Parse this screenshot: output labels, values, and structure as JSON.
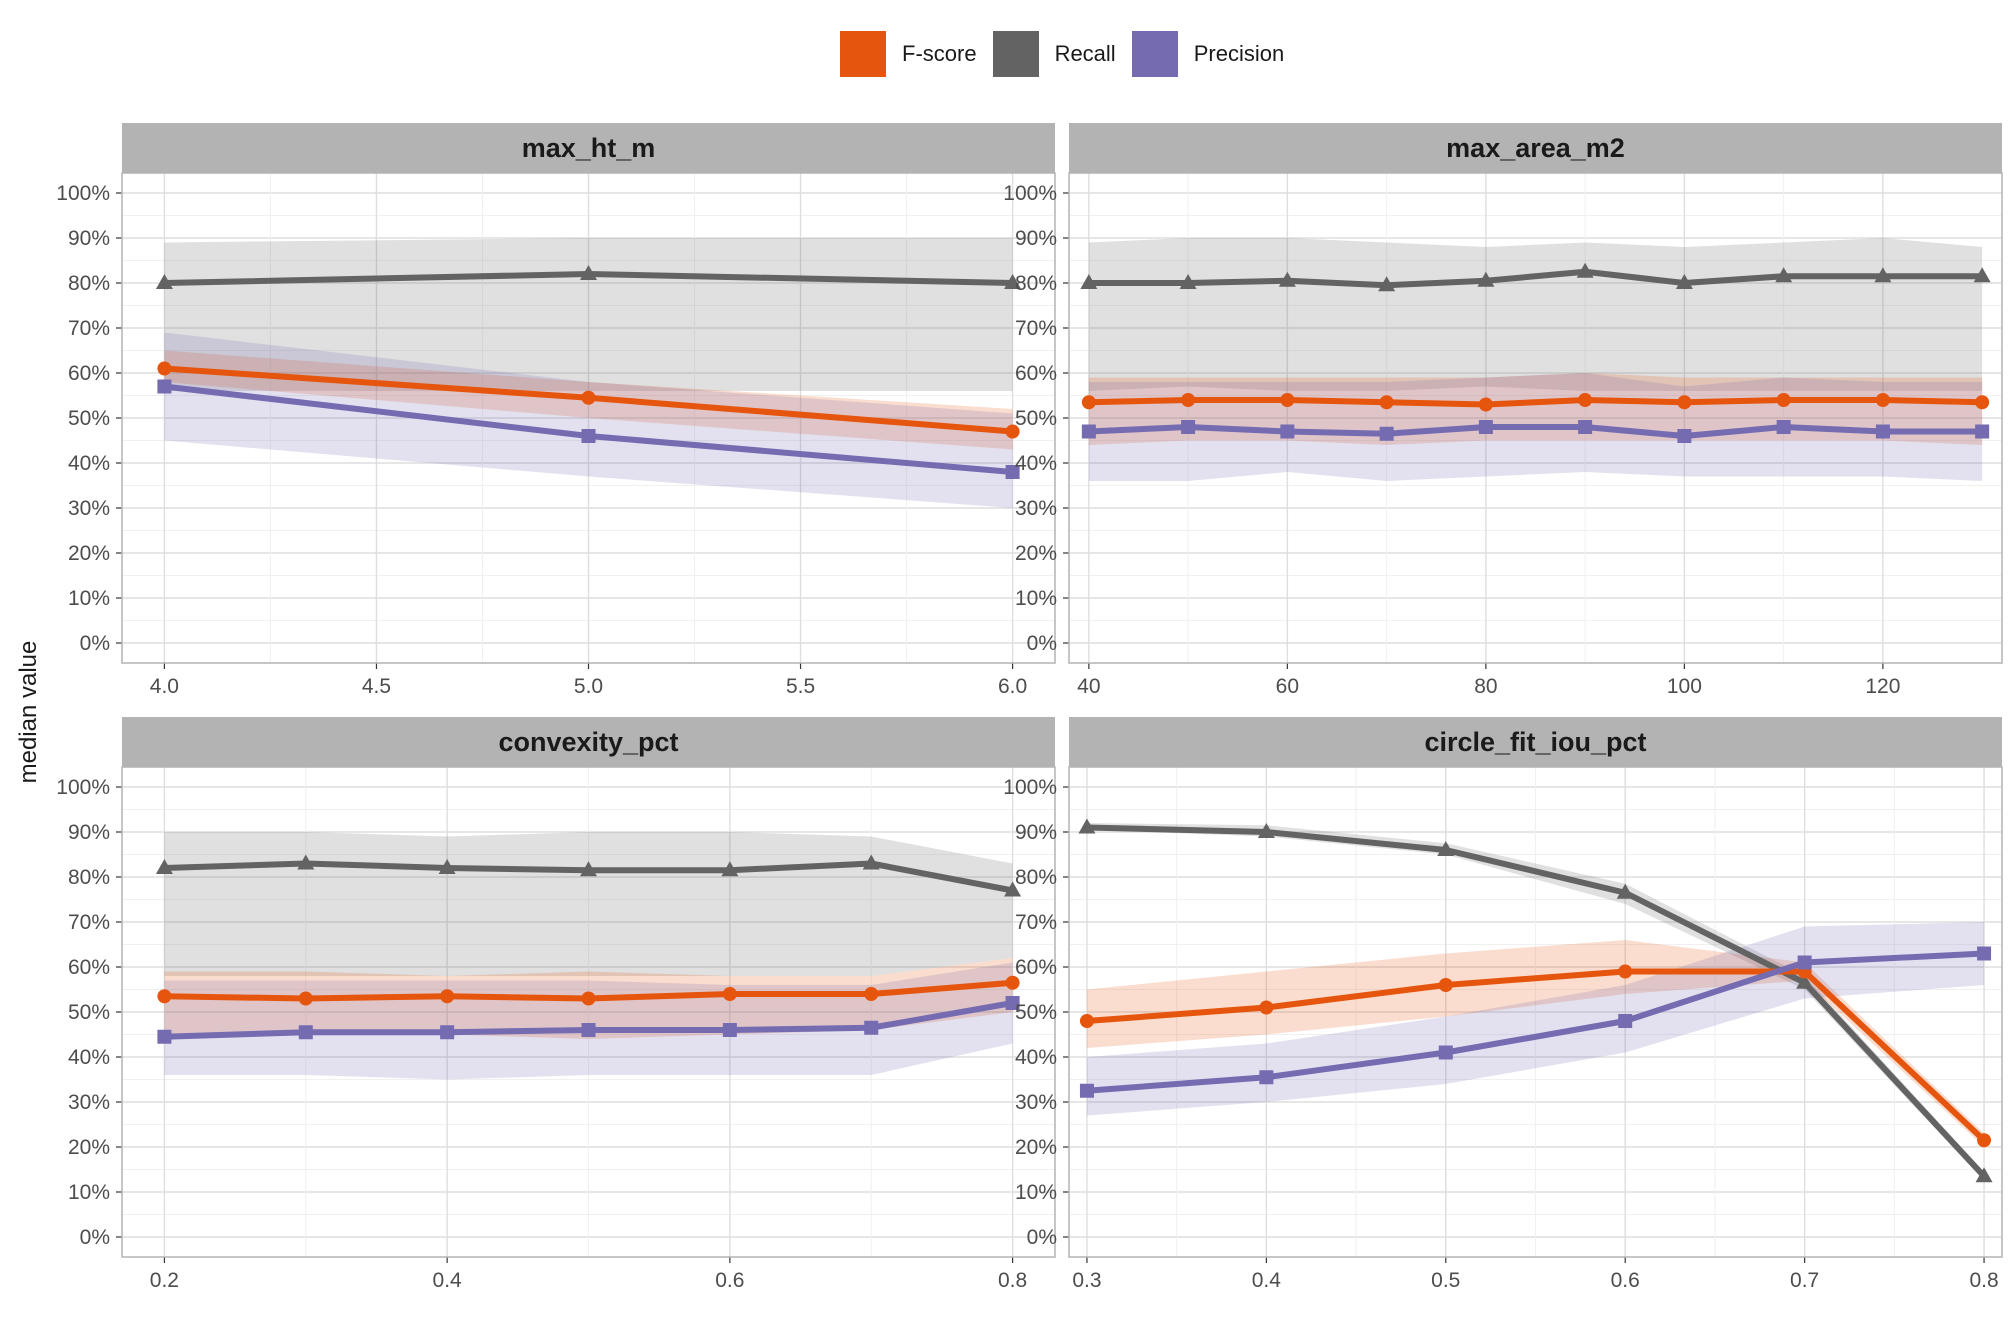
{
  "legend": {
    "items": [
      {
        "label": "F-score",
        "color": "#E6550D"
      },
      {
        "label": "Recall",
        "color": "#636363"
      },
      {
        "label": "Precision",
        "color": "#756BB1"
      }
    ]
  },
  "chart_data": [
    {
      "type": "line",
      "title": "max_ht_m",
      "ylabel": "median value",
      "x": [
        4.0,
        5.0,
        6.0
      ],
      "xlim": [
        3.9,
        6.1
      ],
      "xticks": [
        "4.0",
        "4.5",
        "5.0",
        "5.5",
        "6.0"
      ],
      "ylim": [
        0,
        1
      ],
      "yticks": [
        "0%",
        "10%",
        "20%",
        "30%",
        "40%",
        "50%",
        "60%",
        "70%",
        "80%",
        "90%",
        "100%"
      ],
      "series": [
        {
          "name": "Recall",
          "color": "#636363",
          "marker": "triangle",
          "values": [
            0.8,
            0.82,
            0.8
          ],
          "lower": [
            0.56,
            0.56,
            0.56
          ],
          "upper": [
            0.89,
            0.9,
            0.9
          ]
        },
        {
          "name": "F-score",
          "color": "#E6550D",
          "marker": "circle",
          "values": [
            0.61,
            0.545,
            0.47
          ],
          "lower": [
            0.58,
            0.5,
            0.43
          ],
          "upper": [
            0.65,
            0.58,
            0.52
          ]
        },
        {
          "name": "Precision",
          "color": "#756BB1",
          "marker": "square",
          "values": [
            0.57,
            0.46,
            0.38
          ],
          "lower": [
            0.45,
            0.37,
            0.3
          ],
          "upper": [
            0.69,
            0.58,
            0.51
          ]
        }
      ]
    },
    {
      "type": "line",
      "title": "max_area_m2",
      "x": [
        40,
        50,
        60,
        70,
        80,
        90,
        100,
        110,
        120,
        130
      ],
      "xlim": [
        38,
        132
      ],
      "xticks": [
        "40",
        "60",
        "80",
        "100",
        "120"
      ],
      "ylim": [
        0,
        1
      ],
      "yticks": [
        "0%",
        "10%",
        "20%",
        "30%",
        "40%",
        "50%",
        "60%",
        "70%",
        "80%",
        "90%",
        "100%"
      ],
      "series": [
        {
          "name": "Recall",
          "color": "#636363",
          "marker": "triangle",
          "values": [
            0.8,
            0.8,
            0.805,
            0.795,
            0.805,
            0.825,
            0.8,
            0.815,
            0.815,
            0.815
          ],
          "lower": [
            0.56,
            0.57,
            0.56,
            0.56,
            0.57,
            0.56,
            0.56,
            0.56,
            0.56,
            0.56
          ],
          "upper": [
            0.89,
            0.9,
            0.9,
            0.89,
            0.88,
            0.89,
            0.88,
            0.89,
            0.9,
            0.88
          ]
        },
        {
          "name": "F-score",
          "color": "#E6550D",
          "marker": "circle",
          "values": [
            0.535,
            0.54,
            0.54,
            0.535,
            0.53,
            0.54,
            0.535,
            0.54,
            0.54,
            0.535
          ],
          "lower": [
            0.44,
            0.45,
            0.45,
            0.44,
            0.45,
            0.45,
            0.45,
            0.45,
            0.45,
            0.44
          ],
          "upper": [
            0.59,
            0.59,
            0.59,
            0.59,
            0.59,
            0.6,
            0.59,
            0.59,
            0.59,
            0.59
          ]
        },
        {
          "name": "Precision",
          "color": "#756BB1",
          "marker": "square",
          "values": [
            0.47,
            0.48,
            0.47,
            0.465,
            0.48,
            0.48,
            0.46,
            0.48,
            0.47,
            0.47
          ],
          "lower": [
            0.36,
            0.36,
            0.38,
            0.36,
            0.37,
            0.38,
            0.37,
            0.37,
            0.37,
            0.36
          ],
          "upper": [
            0.58,
            0.58,
            0.58,
            0.58,
            0.59,
            0.6,
            0.57,
            0.59,
            0.58,
            0.58
          ]
        }
      ]
    },
    {
      "type": "line",
      "title": "convexity_pct",
      "x": [
        0.2,
        0.3,
        0.4,
        0.5,
        0.6,
        0.7,
        0.8
      ],
      "xlim": [
        0.17,
        0.83
      ],
      "xticks": [
        "0.2",
        "0.4",
        "0.6",
        "0.8"
      ],
      "ylim": [
        0,
        1
      ],
      "yticks": [
        "0%",
        "10%",
        "20%",
        "30%",
        "40%",
        "50%",
        "60%",
        "70%",
        "80%",
        "90%",
        "100%"
      ],
      "series": [
        {
          "name": "Recall",
          "color": "#636363",
          "marker": "triangle",
          "values": [
            0.82,
            0.83,
            0.82,
            0.815,
            0.815,
            0.83,
            0.77
          ],
          "lower": [
            0.58,
            0.58,
            0.58,
            0.58,
            0.58,
            0.58,
            0.62
          ],
          "upper": [
            0.9,
            0.9,
            0.89,
            0.9,
            0.9,
            0.89,
            0.83
          ]
        },
        {
          "name": "F-score",
          "color": "#E6550D",
          "marker": "circle",
          "values": [
            0.535,
            0.53,
            0.535,
            0.53,
            0.54,
            0.54,
            0.565
          ],
          "lower": [
            0.45,
            0.45,
            0.45,
            0.44,
            0.45,
            0.46,
            0.5
          ],
          "upper": [
            0.59,
            0.59,
            0.58,
            0.59,
            0.58,
            0.58,
            0.62
          ]
        },
        {
          "name": "Precision",
          "color": "#756BB1",
          "marker": "square",
          "values": [
            0.445,
            0.455,
            0.455,
            0.46,
            0.46,
            0.465,
            0.52
          ],
          "lower": [
            0.36,
            0.36,
            0.35,
            0.36,
            0.36,
            0.36,
            0.43
          ],
          "upper": [
            0.57,
            0.57,
            0.57,
            0.57,
            0.56,
            0.56,
            0.61
          ]
        }
      ]
    },
    {
      "type": "line",
      "title": "circle_fit_iou_pct",
      "x": [
        0.3,
        0.4,
        0.5,
        0.6,
        0.7,
        0.8
      ],
      "xlim": [
        0.29,
        0.81
      ],
      "xticks": [
        "0.3",
        "0.4",
        "0.5",
        "0.6",
        "0.7",
        "0.8"
      ],
      "ylim": [
        0,
        1
      ],
      "yticks": [
        "0%",
        "10%",
        "20%",
        "30%",
        "40%",
        "50%",
        "60%",
        "70%",
        "80%",
        "90%",
        "100%"
      ],
      "series": [
        {
          "name": "Recall",
          "color": "#636363",
          "marker": "triangle",
          "values": [
            0.91,
            0.9,
            0.86,
            0.765,
            0.565,
            0.135
          ],
          "lower": [
            0.905,
            0.89,
            0.85,
            0.74,
            0.55,
            0.125
          ],
          "upper": [
            0.92,
            0.915,
            0.875,
            0.785,
            0.58,
            0.145
          ]
        },
        {
          "name": "F-score",
          "color": "#E6550D",
          "marker": "circle",
          "values": [
            0.48,
            0.51,
            0.56,
            0.59,
            0.59,
            0.215
          ],
          "lower": [
            0.42,
            0.45,
            0.49,
            0.54,
            0.57,
            0.2
          ],
          "upper": [
            0.55,
            0.59,
            0.63,
            0.66,
            0.61,
            0.23
          ]
        },
        {
          "name": "Precision",
          "color": "#756BB1",
          "marker": "square",
          "values": [
            0.325,
            0.355,
            0.41,
            0.48,
            0.61,
            0.63
          ],
          "lower": [
            0.27,
            0.3,
            0.34,
            0.41,
            0.53,
            0.56
          ],
          "upper": [
            0.4,
            0.43,
            0.49,
            0.56,
            0.69,
            0.7
          ]
        }
      ]
    }
  ]
}
